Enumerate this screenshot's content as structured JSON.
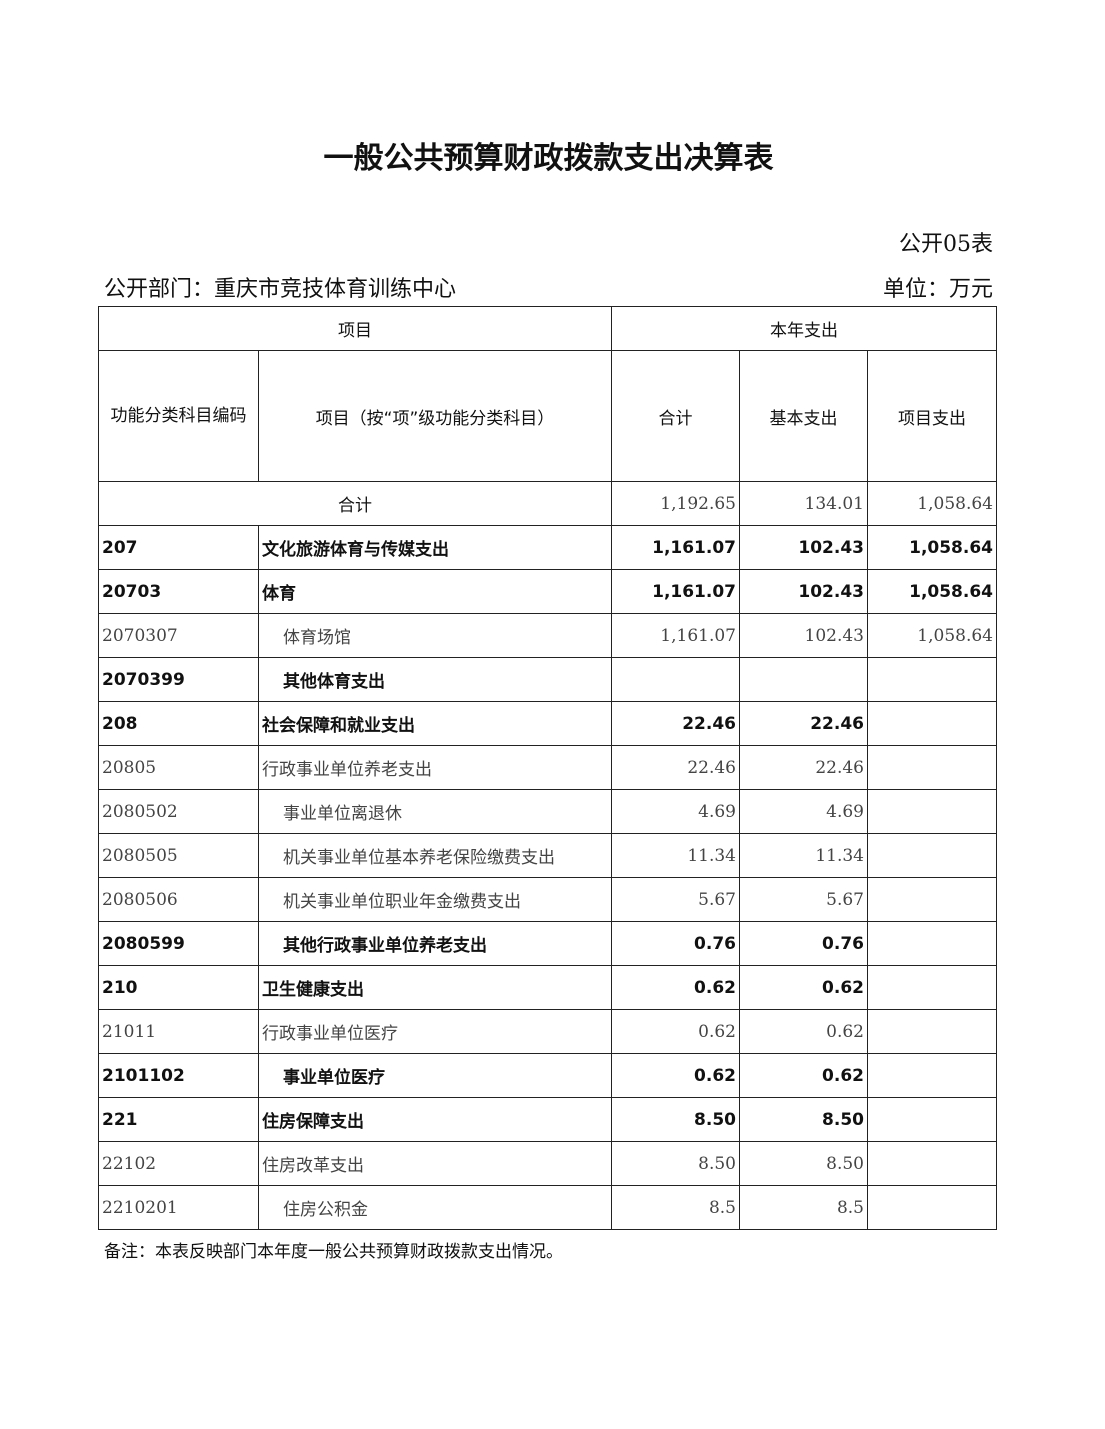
{
  "title": "一般公共预算财政拨款支出决算表",
  "form_no": "公开05表",
  "department": "公开部门：重庆市竞技体育训练中心",
  "unit": "单位：万元",
  "headers": {
    "item": "项目",
    "current_year": "本年支出",
    "code": "功能分类科目编码",
    "item_name": "项目（按“项”级功能分类科目）",
    "total": "合计",
    "basic": "基本支出",
    "project": "项目支出"
  },
  "total_row": {
    "label": "合计",
    "total": "1,192.65",
    "basic": "134.01",
    "project": "1,058.64"
  },
  "rows": [
    {
      "code": "207",
      "name": "文化旅游体育与传媒支出",
      "total": "1,161.07",
      "basic": "102.43",
      "project": "1,058.64",
      "bold": true,
      "indent": false
    },
    {
      "code": "20703",
      "name": "体育",
      "total": "1,161.07",
      "basic": "102.43",
      "project": "1,058.64",
      "bold": true,
      "indent": false
    },
    {
      "code": "2070307",
      "name": "体育场馆",
      "total": "1,161.07",
      "basic": "102.43",
      "project": "1,058.64",
      "bold": false,
      "indent": true
    },
    {
      "code": "2070399",
      "name": "其他体育支出",
      "total": "",
      "basic": "",
      "project": "",
      "bold": true,
      "indent": true
    },
    {
      "code": "208",
      "name": "社会保障和就业支出",
      "total": "22.46",
      "basic": "22.46",
      "project": "",
      "bold": true,
      "indent": false
    },
    {
      "code": "20805",
      "name": "行政事业单位养老支出",
      "total": "22.46",
      "basic": "22.46",
      "project": "",
      "bold": false,
      "indent": false
    },
    {
      "code": "2080502",
      "name": "事业单位离退休",
      "total": "4.69",
      "basic": "4.69",
      "project": "",
      "bold": false,
      "indent": true
    },
    {
      "code": "2080505",
      "name": "机关事业单位基本养老保险缴费支出",
      "total": "11.34",
      "basic": "11.34",
      "project": "",
      "bold": false,
      "indent": true
    },
    {
      "code": "2080506",
      "name": "机关事业单位职业年金缴费支出",
      "total": "5.67",
      "basic": "5.67",
      "project": "",
      "bold": false,
      "indent": true
    },
    {
      "code": "2080599",
      "name": "其他行政事业单位养老支出",
      "total": "0.76",
      "basic": "0.76",
      "project": "",
      "bold": true,
      "indent": true
    },
    {
      "code": "210",
      "name": "卫生健康支出",
      "total": "0.62",
      "basic": "0.62",
      "project": "",
      "bold": true,
      "indent": false
    },
    {
      "code": "21011",
      "name": "行政事业单位医疗",
      "total": "0.62",
      "basic": "0.62",
      "project": "",
      "bold": false,
      "indent": false
    },
    {
      "code": "2101102",
      "name": "事业单位医疗",
      "total": "0.62",
      "basic": "0.62",
      "project": "",
      "bold": true,
      "indent": true
    },
    {
      "code": "221",
      "name": "住房保障支出",
      "total": "8.50",
      "basic": "8.50",
      "project": "",
      "bold": true,
      "indent": false
    },
    {
      "code": "22102",
      "name": "住房改革支出",
      "total": "8.50",
      "basic": "8.50",
      "project": "",
      "bold": false,
      "indent": false
    },
    {
      "code": "2210201",
      "name": "住房公积金",
      "total": "8.5",
      "basic": "8.5",
      "project": "",
      "bold": false,
      "indent": true
    }
  ],
  "note": "备注：本表反映部门本年度一般公共预算财政拨款支出情况。"
}
